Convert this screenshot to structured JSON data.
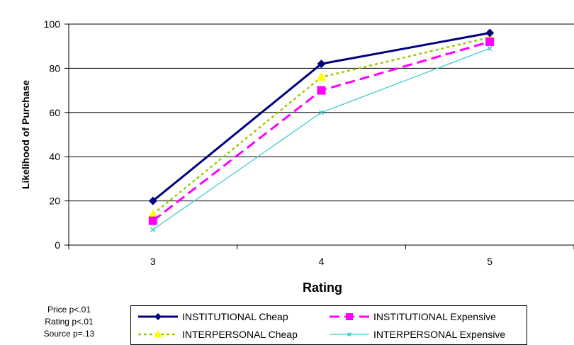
{
  "chart_data": {
    "type": "line",
    "xlabel": "Rating",
    "ylabel": "Likelihood of Purchase",
    "categories": [
      "3",
      "4",
      "5"
    ],
    "ylim": [
      0,
      100
    ],
    "yticks": [
      0,
      20,
      40,
      60,
      80,
      100
    ],
    "grid": true,
    "legend_placement": "bottom",
    "series": [
      {
        "name": "INSTITUTIONAL Cheap",
        "values": [
          20,
          82,
          96
        ],
        "color": "#000080",
        "line": "solid",
        "marker": "diamond"
      },
      {
        "name": "INSTITUTIONAL Expensive",
        "values": [
          11,
          70,
          92
        ],
        "color": "#ff00ff",
        "line": "dashed",
        "marker": "square"
      },
      {
        "name": "INTERPERSONAL Cheap",
        "values": [
          14,
          76,
          94
        ],
        "color": "#99cc00",
        "line": "dotted",
        "marker": "triangle"
      },
      {
        "name": "INTERPERSONAL Expensive",
        "values": [
          7,
          60,
          89
        ],
        "color": "#33cccc",
        "line": "solid-thin",
        "marker": "x"
      }
    ]
  },
  "stats": {
    "line1": "Price p<.01",
    "line2": "Rating p<.01",
    "line3": "Source p=.13"
  }
}
